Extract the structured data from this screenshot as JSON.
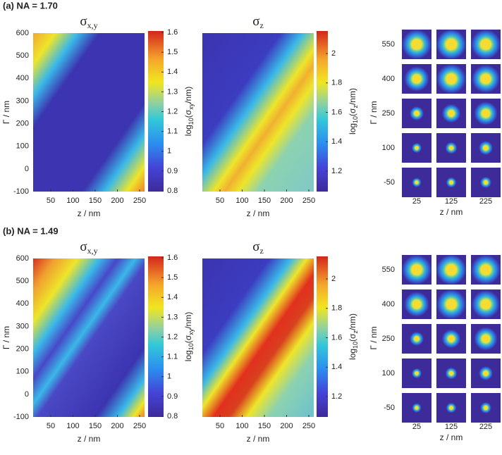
{
  "panels": [
    {
      "label": "(a) NA = 1.70",
      "maps": [
        {
          "title": {
            "symbol": "σ",
            "subscript": "x,y"
          },
          "colorbar": {
            "label": {
              "prefix": "log",
              "base": "10",
              "open": "(σ",
              "subscript": "xy",
              "close": "/nm)"
            },
            "ticks": [
              0.8,
              0.9,
              1,
              1.1,
              1.2,
              1.3,
              1.4,
              1.5,
              1.6
            ]
          }
        },
        {
          "title": {
            "symbol": "σ",
            "subscript": "z"
          },
          "colorbar": {
            "label": {
              "prefix": "log",
              "base": "10",
              "open": "(σ",
              "subscript": "z",
              "close": "/nm)"
            },
            "ticks": [
              1.2,
              1.4,
              1.6,
              1.8,
              2
            ]
          }
        }
      ],
      "xaxis": {
        "label": "z / nm",
        "ticks": [
          50,
          100,
          150,
          200,
          250
        ]
      },
      "yaxis": {
        "label": "Γ / nm",
        "ticks": [
          -100,
          0,
          100,
          200,
          300,
          400,
          500,
          600
        ]
      },
      "spots": {
        "xlabel": "z / nm",
        "ylabel": "Γ / nm",
        "rows": [
          550,
          400,
          250,
          100,
          -50
        ],
        "cols": [
          25,
          125,
          225
        ]
      }
    },
    {
      "label": "(b) NA = 1.49",
      "maps": [
        {
          "title": {
            "symbol": "σ",
            "subscript": "x,y"
          },
          "colorbar": {
            "label": {
              "prefix": "log",
              "base": "10",
              "open": "(σ",
              "subscript": "xy",
              "close": "/nm)"
            },
            "ticks": [
              0.8,
              0.9,
              1,
              1.1,
              1.2,
              1.3,
              1.4,
              1.5,
              1.6
            ]
          }
        },
        {
          "title": {
            "symbol": "σ",
            "subscript": "z"
          },
          "colorbar": {
            "label": {
              "prefix": "log",
              "base": "10",
              "open": "(σ",
              "subscript": "z",
              "close": "/nm)"
            },
            "ticks": [
              1.2,
              1.4,
              1.6,
              1.8,
              2
            ]
          }
        }
      ],
      "xaxis": {
        "label": "z / nm",
        "ticks": [
          50,
          100,
          150,
          200,
          250
        ]
      },
      "yaxis": {
        "label": "Γ / nm",
        "ticks": [
          -100,
          0,
          100,
          200,
          300,
          400,
          500,
          600
        ]
      },
      "spots": {
        "xlabel": "z / nm",
        "ylabel": "Γ / nm",
        "rows": [
          550,
          400,
          250,
          100,
          -50
        ],
        "cols": [
          25,
          125,
          225
        ]
      }
    }
  ]
}
